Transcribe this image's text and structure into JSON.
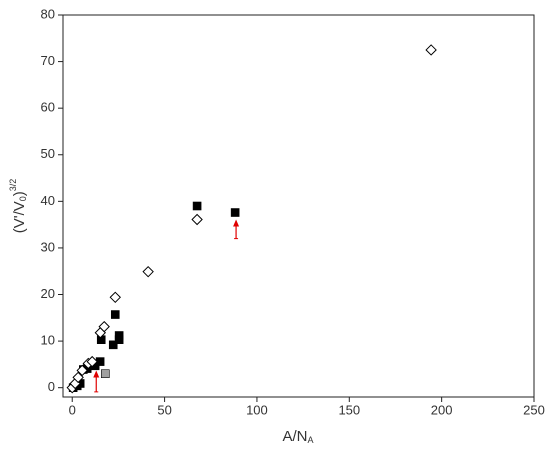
{
  "chart_data": {
    "type": "scatter",
    "x_label": {
      "main": "A/N",
      "sub": "A"
    },
    "y_label": {
      "open": "(V'/V",
      "sub": "0",
      "close": ")",
      "sup": "3/2"
    },
    "xlim": [
      -5,
      250
    ],
    "ylim": [
      -2,
      80
    ],
    "xticks": [
      0,
      50,
      100,
      150,
      200,
      250
    ],
    "yticks": [
      0,
      10,
      20,
      30,
      40,
      50,
      60,
      70,
      80
    ],
    "series": [
      {
        "marker": "square",
        "color": "#000000",
        "x": [
          0.5,
          2.7,
          4.3,
          6,
          8.1,
          12.4,
          15.1,
          15.7,
          22.2,
          23.3,
          25.4,
          25.4,
          67.6,
          88.2
        ],
        "values": [
          0,
          0.4,
          0.9,
          3.9,
          4.1,
          4.7,
          5.6,
          10.3,
          9.2,
          15.7,
          11.2,
          10.3,
          39,
          37.6
        ]
      },
      {
        "marker": "diamond",
        "color": "#000000",
        "x": [
          0,
          1.6,
          3.2,
          5.4,
          8.7,
          10.8,
          15.2,
          17.3,
          23.3,
          41.1,
          67.6,
          194.3
        ],
        "values": [
          0,
          0.9,
          2.2,
          3.7,
          5.2,
          5.6,
          11.8,
          13.1,
          19.4,
          24.9,
          36.1,
          72.5
        ]
      },
      {
        "marker": "square",
        "color": "#a0a0a0",
        "x": [
          17.9
        ],
        "values": [
          3
        ]
      }
    ],
    "arrows": {
      "color": "#e00000",
      "x": [
        13,
        88.7
      ],
      "base": [
        -0.9,
        32
      ],
      "tip": [
        3.7,
        36.1
      ]
    }
  }
}
